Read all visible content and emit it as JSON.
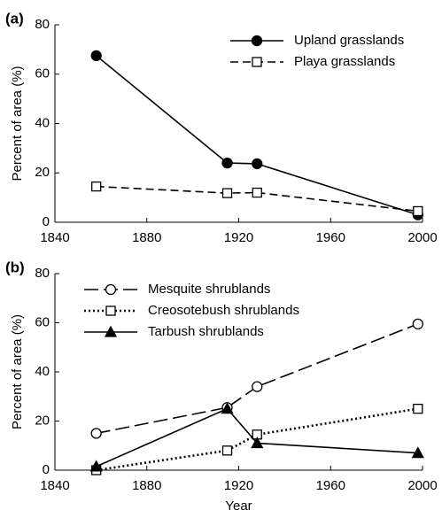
{
  "chart_data": [
    {
      "type": "line",
      "panel_label": "(a)",
      "ylabel": "Percent of area (%)",
      "x": [
        1858,
        1915,
        1928,
        1998
      ],
      "series": [
        {
          "name": "Upland grasslands",
          "color": "#000000",
          "marker": "circle-filled",
          "dash": "solid",
          "values": [
            67.5,
            24,
            23.7,
            3
          ]
        },
        {
          "name": "Playa grasslands",
          "color": "#000000",
          "marker": "square-open",
          "dash": "dashed",
          "values": [
            14.5,
            11.8,
            12,
            4.5
          ]
        }
      ],
      "xlim": [
        1840,
        2000
      ],
      "xticks": [
        1840,
        1880,
        1920,
        1960,
        2000
      ],
      "ylim": [
        0,
        80
      ],
      "yticks": [
        0,
        20,
        40,
        60,
        80
      ],
      "legend": "upper right"
    },
    {
      "type": "line",
      "panel_label": "(b)",
      "ylabel": "Percent of area (%)",
      "xlabel": "Year",
      "x": [
        1858,
        1915,
        1928,
        1998
      ],
      "series": [
        {
          "name": "Mesquite shrublands",
          "color": "#000000",
          "marker": "circle-open",
          "dash": "longdash",
          "values": [
            15,
            25.5,
            34,
            59.5
          ]
        },
        {
          "name": "Creosotebush shrublands",
          "color": "#000000",
          "marker": "square-open",
          "dash": "dotted",
          "values": [
            0,
            8,
            14.5,
            25
          ]
        },
        {
          "name": "Tarbush shrublands",
          "color": "#000000",
          "marker": "triangle-filled",
          "dash": "solid",
          "values": [
            1.5,
            25,
            11,
            7
          ]
        }
      ],
      "xlim": [
        1840,
        2000
      ],
      "xticks": [
        1840,
        1880,
        1920,
        1960,
        2000
      ],
      "ylim": [
        0,
        80
      ],
      "yticks": [
        0,
        20,
        40,
        60,
        80
      ],
      "legend": "upper left"
    }
  ]
}
